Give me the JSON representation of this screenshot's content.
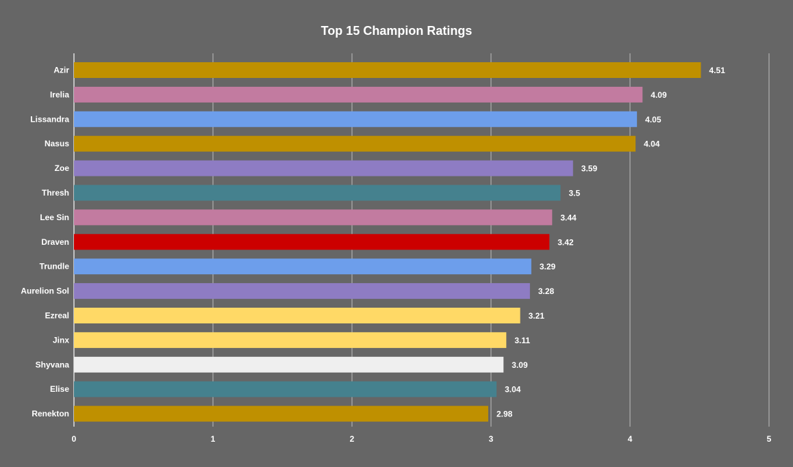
{
  "chart_data": {
    "type": "bar",
    "orientation": "horizontal",
    "title": "Top 15 Champion Ratings",
    "xlabel": "",
    "ylabel": "",
    "xlim": [
      0,
      5
    ],
    "ticks": [
      "0",
      "1",
      "2",
      "3",
      "4",
      "5"
    ],
    "grid": true,
    "categories": [
      "Azir",
      "Irelia",
      "Lissandra",
      "Nasus",
      "Zoe",
      "Thresh",
      "Lee Sin",
      "Draven",
      "Trundle",
      "Aurelion Sol",
      "Ezreal",
      "Jinx",
      "Shyvana",
      "Elise",
      "Renekton"
    ],
    "values": [
      4.51,
      4.09,
      4.05,
      4.04,
      3.59,
      3.5,
      3.44,
      3.42,
      3.29,
      3.28,
      3.21,
      3.11,
      3.09,
      3.04,
      2.98
    ],
    "value_labels": [
      "4.51",
      "4.09",
      "4.05",
      "4.04",
      "3.59",
      "3.5",
      "3.44",
      "3.42",
      "3.29",
      "3.28",
      "3.21",
      "3.11",
      "3.09",
      "3.04",
      "2.98"
    ],
    "colors": [
      "#bf9000",
      "#c27ba0",
      "#6d9eeb",
      "#bf9000",
      "#8e7cc3",
      "#45818e",
      "#c27ba0",
      "#cc0000",
      "#6d9eeb",
      "#8e7cc3",
      "#ffd966",
      "#ffd966",
      "#efefef",
      "#45818e",
      "#bf9000"
    ]
  }
}
